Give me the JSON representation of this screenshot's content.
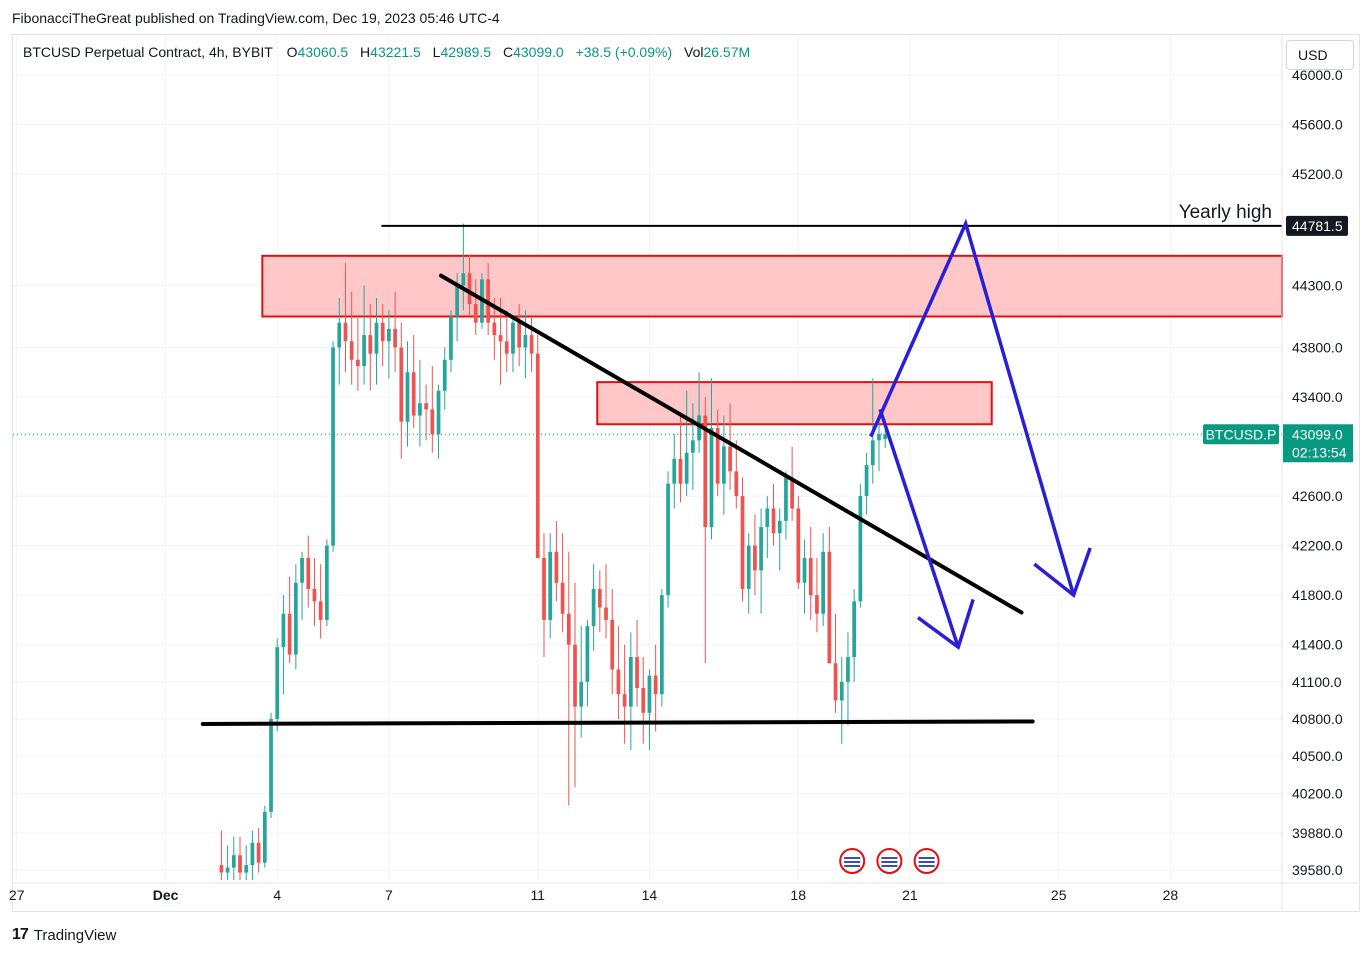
{
  "header": {
    "published": "FibonacciTheGreat published on TradingView.com, Dec 19, 2023 05:46 UTC-4"
  },
  "legend": {
    "symbol": "BTCUSD Perpetual Contract, 4h, BYBIT",
    "o_label": "O",
    "o_value": "43060.5",
    "h_label": "H",
    "h_value": "43221.5",
    "l_label": "L",
    "l_value": "42989.5",
    "c_label": "C",
    "c_value": "43099.0",
    "change": "+38.5 (+0.09%)",
    "vol_label": "Vol",
    "vol_value": "26.57M"
  },
  "currency_button": "USD",
  "footer": {
    "brand": "TradingView"
  },
  "colors": {
    "up": "#26a69a",
    "down": "#ef5350",
    "zone_fill": "#ffc7c7",
    "zone_stroke": "#e01010",
    "trendline": "#000000",
    "arrows": "#2a1fd6",
    "price_tag": "#089981",
    "high_tag": "#131722"
  },
  "chart_data": {
    "type": "candlestick",
    "title": "BTCUSD Perpetual Contract, 4h, BYBIT",
    "x_tick_labels": [
      "27",
      "Dec",
      "4",
      "7",
      "11",
      "14",
      "18",
      "21",
      "25",
      "28"
    ],
    "x_tick_days": [
      -4,
      0,
      3,
      6,
      10,
      13,
      17,
      20,
      24,
      27
    ],
    "y_tick_labels": [
      "46000.0",
      "45600.0",
      "45200.0",
      "44300.0",
      "43800.0",
      "43400.0",
      "42600.0",
      "42200.0",
      "41800.0",
      "41400.0",
      "41100.0",
      "40800.0",
      "40500.0",
      "40200.0",
      "39880.0",
      "39580.0"
    ],
    "y_ticks": [
      46000,
      45600,
      45200,
      44300,
      43800,
      43400,
      42600,
      42200,
      41800,
      41400,
      41100,
      40800,
      40500,
      40200,
      39880,
      39580
    ],
    "y_range": [
      39500,
      46000
    ],
    "x_range_days": [
      -4.1,
      30
    ],
    "last_price": {
      "label": "BTCUSD.P",
      "value": "43099.0",
      "countdown": "02:13:54",
      "price": 43099
    },
    "yearly_high": {
      "label": "Yearly high",
      "value": "44781.5",
      "price": 44781.5,
      "from_day": 5.8,
      "to_day": 30
    },
    "candles_start_day": 1.5,
    "candle_step_days": 0.1667,
    "candles": [
      [
        39620,
        39900,
        39500,
        39560
      ],
      [
        39560,
        39780,
        39500,
        39600
      ],
      [
        39600,
        39850,
        39500,
        39700
      ],
      [
        39700,
        39850,
        39500,
        39560
      ],
      [
        39560,
        39780,
        39500,
        39620
      ],
      [
        39620,
        39900,
        39500,
        39800
      ],
      [
        39800,
        39920,
        39560,
        39640
      ],
      [
        39640,
        40100,
        39600,
        40050
      ],
      [
        40050,
        40850,
        40000,
        40800
      ],
      [
        40800,
        41450,
        40700,
        41380
      ],
      [
        41380,
        41800,
        41000,
        41650
      ],
      [
        41650,
        41950,
        41250,
        41320
      ],
      [
        41320,
        42050,
        41200,
        41900
      ],
      [
        41900,
        42150,
        41600,
        42100
      ],
      [
        42100,
        42280,
        41700,
        41850
      ],
      [
        41850,
        42100,
        41550,
        41750
      ],
      [
        41750,
        42050,
        41450,
        41600
      ],
      [
        41600,
        42250,
        41550,
        42200
      ],
      [
        42200,
        43850,
        42150,
        43800
      ],
      [
        43800,
        44200,
        43500,
        44000
      ],
      [
        44000,
        44480,
        43600,
        43850
      ],
      [
        43850,
        44250,
        43500,
        43700
      ],
      [
        43700,
        44050,
        43450,
        43650
      ],
      [
        43650,
        44300,
        43500,
        43900
      ],
      [
        43900,
        44150,
        43450,
        43750
      ],
      [
        43750,
        44200,
        43500,
        44000
      ],
      [
        44000,
        44150,
        43650,
        43850
      ],
      [
        43850,
        44100,
        43550,
        43950
      ],
      [
        43950,
        44250,
        43600,
        43800
      ],
      [
        43800,
        44000,
        42900,
        43200
      ],
      [
        43200,
        43850,
        43000,
        43600
      ],
      [
        43600,
        43900,
        43150,
        43250
      ],
      [
        43250,
        43700,
        43000,
        43350
      ],
      [
        43350,
        43500,
        43050,
        43300
      ],
      [
        43300,
        43650,
        42950,
        43100
      ],
      [
        43100,
        43500,
        42900,
        43450
      ],
      [
        43450,
        43800,
        43300,
        43700
      ],
      [
        43700,
        44100,
        43600,
        44050
      ],
      [
        44050,
        44400,
        43850,
        44300
      ],
      [
        44300,
        44800,
        44100,
        44400
      ],
      [
        44400,
        44550,
        44050,
        44150
      ],
      [
        44150,
        44350,
        43900,
        44000
      ],
      [
        44000,
        44400,
        43950,
        44350
      ],
      [
        44350,
        44480,
        43900,
        44000
      ],
      [
        44000,
        44200,
        43700,
        43900
      ],
      [
        43900,
        44200,
        43500,
        43850
      ],
      [
        43850,
        44100,
        43600,
        43750
      ],
      [
        43750,
        44050,
        43600,
        44000
      ],
      [
        44000,
        44150,
        43650,
        43800
      ],
      [
        43800,
        44100,
        43550,
        43900
      ],
      [
        43900,
        44050,
        43600,
        43750
      ],
      [
        43750,
        43900,
        42150,
        42100
      ],
      [
        42100,
        42300,
        41300,
        41600
      ],
      [
        41600,
        42300,
        41450,
        42150
      ],
      [
        42150,
        42400,
        41750,
        41900
      ],
      [
        41900,
        42300,
        41500,
        41650
      ],
      [
        41650,
        42150,
        40100,
        41400
      ],
      [
        41400,
        41900,
        40250,
        40900
      ],
      [
        40900,
        41550,
        40650,
        41100
      ],
      [
        41100,
        41600,
        40900,
        41550
      ],
      [
        41550,
        42050,
        41350,
        41850
      ],
      [
        41850,
        42000,
        41500,
        41700
      ],
      [
        41700,
        42050,
        41450,
        41600
      ],
      [
        41600,
        41850,
        41000,
        41200
      ],
      [
        41200,
        41550,
        40800,
        41000
      ],
      [
        41000,
        41400,
        40600,
        40900
      ],
      [
        40900,
        41500,
        40550,
        41300
      ],
      [
        41300,
        41600,
        40900,
        41050
      ],
      [
        41050,
        41300,
        40600,
        40850
      ],
      [
        40850,
        41200,
        40550,
        41150
      ],
      [
        41150,
        41400,
        40700,
        41000
      ],
      [
        41000,
        41850,
        40900,
        41800
      ],
      [
        41800,
        42800,
        41700,
        42700
      ],
      [
        42700,
        43100,
        42500,
        42900
      ],
      [
        42900,
        43250,
        42550,
        42700
      ],
      [
        42700,
        43450,
        42600,
        42950
      ],
      [
        42950,
        43350,
        42650,
        43050
      ],
      [
        43050,
        43600,
        42950,
        43250
      ],
      [
        43250,
        43400,
        41250,
        42350
      ],
      [
        42350,
        43550,
        42250,
        43150
      ],
      [
        43150,
        43300,
        42600,
        42700
      ],
      [
        42700,
        43250,
        42450,
        43000
      ],
      [
        43000,
        43350,
        42650,
        42800
      ],
      [
        42800,
        43050,
        42500,
        42600
      ],
      [
        42600,
        42750,
        41750,
        41850
      ],
      [
        41850,
        42300,
        41650,
        42200
      ],
      [
        42200,
        42450,
        41800,
        42000
      ],
      [
        42000,
        42500,
        41650,
        42350
      ],
      [
        42350,
        42600,
        42100,
        42500
      ],
      [
        42500,
        42700,
        42200,
        42300
      ],
      [
        42300,
        42500,
        42000,
        42400
      ],
      [
        42400,
        42800,
        42250,
        42750
      ],
      [
        42750,
        43000,
        42400,
        42500
      ],
      [
        42500,
        42600,
        41850,
        41900
      ],
      [
        41900,
        42250,
        41650,
        42100
      ],
      [
        42100,
        42350,
        41600,
        41800
      ],
      [
        41800,
        42100,
        41500,
        41650
      ],
      [
        41650,
        42300,
        41550,
        42150
      ],
      [
        42150,
        42350,
        41300,
        41250
      ],
      [
        41250,
        41650,
        40850,
        40950
      ],
      [
        40950,
        41300,
        40600,
        41100
      ],
      [
        41100,
        41500,
        40750,
        41300
      ],
      [
        41300,
        41850,
        41100,
        41750
      ],
      [
        41750,
        42700,
        41700,
        42600
      ],
      [
        42600,
        42950,
        42450,
        42850
      ],
      [
        42850,
        43550,
        42700,
        43050
      ],
      [
        43050,
        43250,
        42800,
        43100
      ],
      [
        43060.5,
        43221.5,
        42989.5,
        43099
      ]
    ],
    "resistance_zones": [
      {
        "top": 44540,
        "bottom": 44050,
        "from_day": 2.6,
        "to_day": 30
      },
      {
        "top": 43520,
        "bottom": 43180,
        "from_day": 11.6,
        "to_day": 22.2
      }
    ],
    "trendlines": [
      {
        "from": [
          7.4,
          44380
        ],
        "to": [
          23.0,
          41660
        ]
      },
      {
        "from": [
          1.0,
          40760
        ],
        "to": [
          23.3,
          40780
        ]
      }
    ],
    "projection_arrows": [
      {
        "points": [
          [
            18.95,
            43080
          ],
          [
            21.5,
            44800
          ],
          [
            24.4,
            41800
          ]
        ]
      },
      {
        "points": [
          [
            19.2,
            43300
          ],
          [
            21.3,
            41380
          ]
        ]
      }
    ],
    "event_markers_days": [
      18.45,
      19.45,
      20.45
    ]
  }
}
